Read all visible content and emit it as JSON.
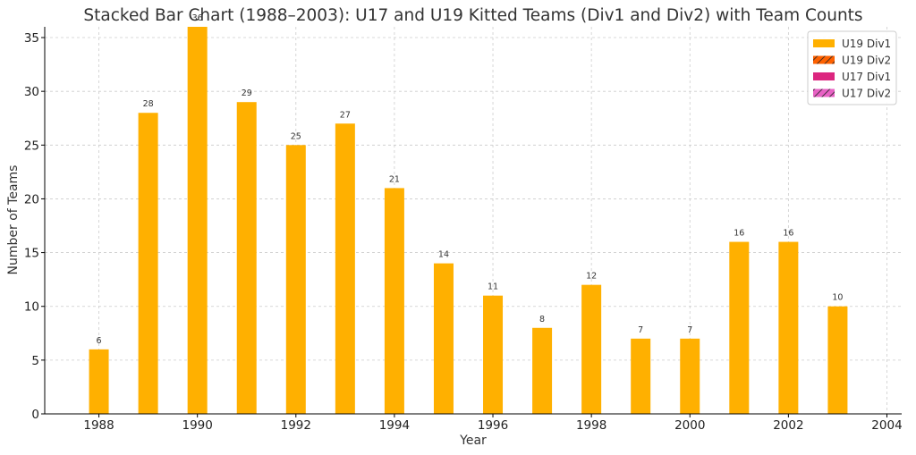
{
  "chart_data": {
    "type": "bar",
    "stacked": true,
    "title": "Stacked Bar Chart (1988–2003): U17 and U19 Kitted Teams (Div1 and Div2) with Team Counts",
    "xlabel": "Year",
    "ylabel": "Number of Teams",
    "x": [
      1988,
      1989,
      1990,
      1991,
      1992,
      1993,
      1994,
      1995,
      1996,
      1997,
      1998,
      1999,
      2000,
      2001,
      2002,
      2003
    ],
    "series": [
      {
        "name": "U19 Div1",
        "color": "#FFB000",
        "pattern": "solid",
        "values": [
          6,
          28,
          36,
          29,
          25,
          27,
          21,
          14,
          11,
          8,
          12,
          7,
          7,
          16,
          16,
          10
        ]
      },
      {
        "name": "U19 Div2",
        "color": "#FE6100",
        "pattern": "hatched",
        "values": [
          0,
          0,
          0,
          0,
          0,
          0,
          0,
          0,
          0,
          0,
          0,
          0,
          0,
          0,
          0,
          0
        ]
      },
      {
        "name": "U17 Div1",
        "color": "#DC267F",
        "pattern": "solid",
        "values": [
          0,
          0,
          0,
          0,
          0,
          0,
          0,
          0,
          0,
          0,
          0,
          0,
          0,
          0,
          0,
          0
        ]
      },
      {
        "name": "U17 Div2",
        "color": "#E861C4",
        "pattern": "hatched",
        "values": [
          0,
          0,
          0,
          0,
          0,
          0,
          0,
          0,
          0,
          0,
          0,
          0,
          0,
          0,
          0,
          0
        ]
      }
    ],
    "totals": [
      6,
      28,
      36,
      29,
      25,
      27,
      21,
      14,
      11,
      8,
      12,
      7,
      7,
      16,
      16,
      10
    ],
    "xlim": [
      1986.9,
      2004.3
    ],
    "ylim": [
      0,
      36
    ],
    "xticks": [
      "1988",
      "1990",
      "1992",
      "1994",
      "1996",
      "1998",
      "2000",
      "2002",
      "2004"
    ],
    "yticks": [
      "0",
      "5",
      "10",
      "15",
      "20",
      "25",
      "30",
      "35"
    ],
    "grid": true,
    "legend_position": "top-right"
  }
}
